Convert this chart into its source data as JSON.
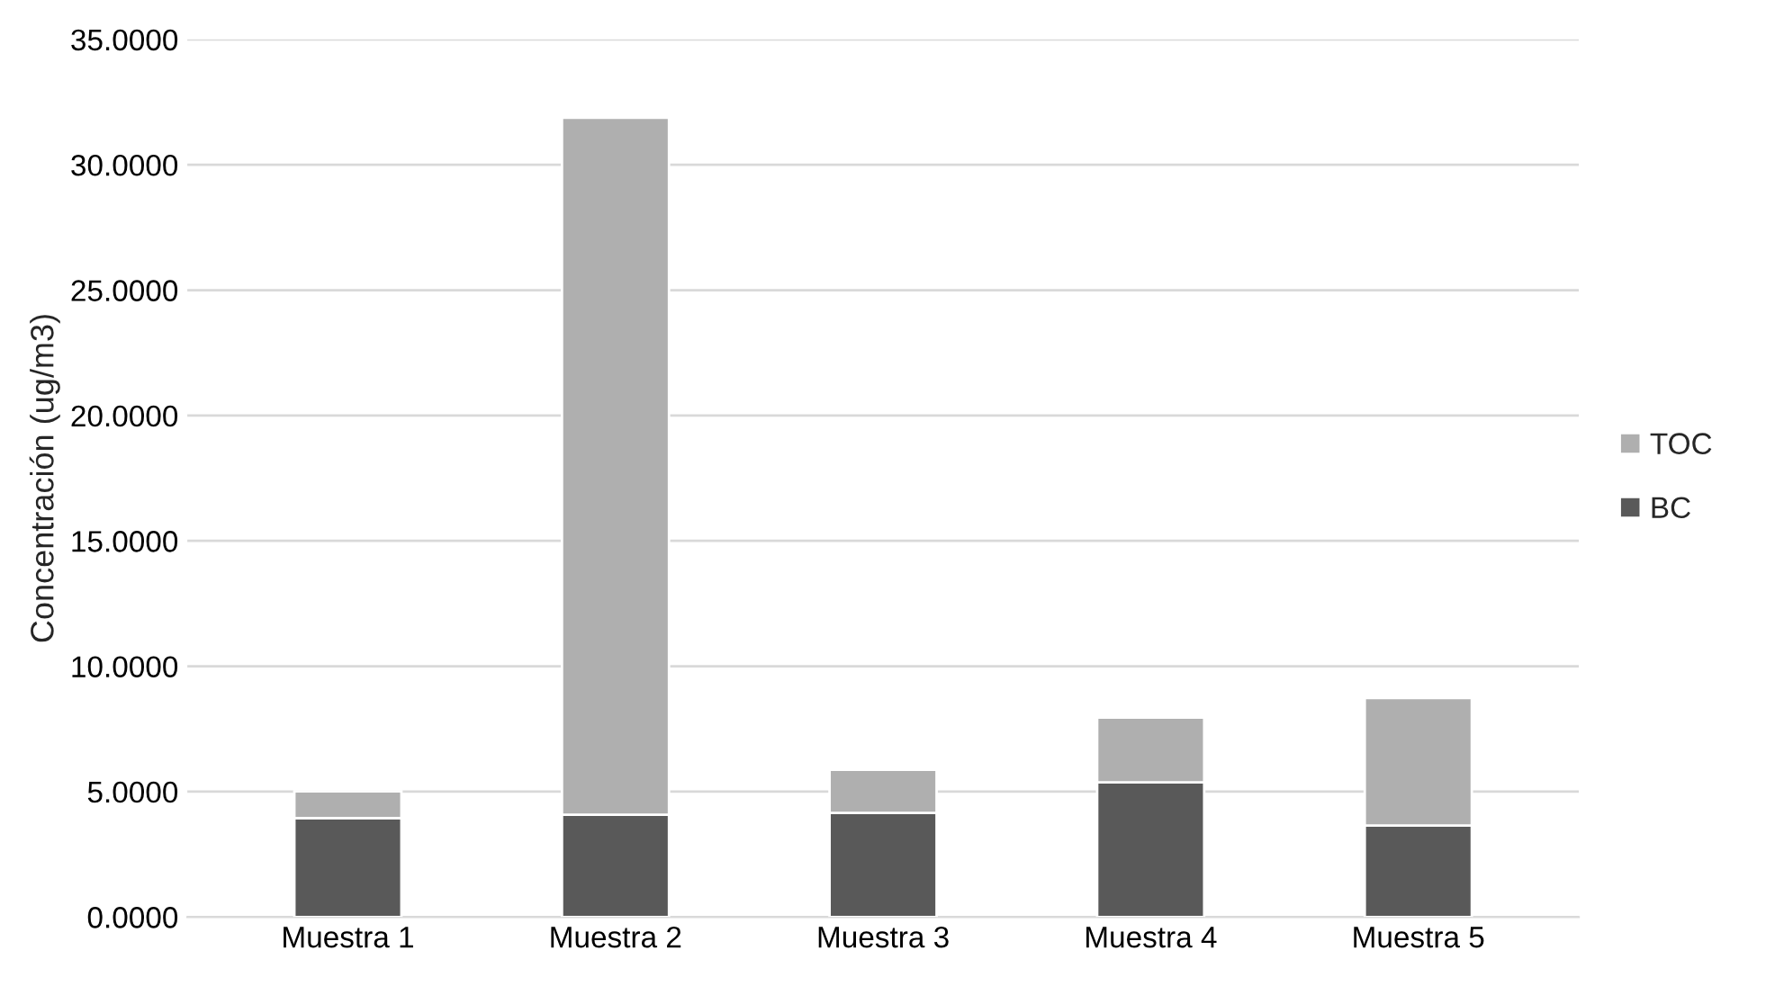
{
  "chart_data": {
    "type": "bar",
    "stacked": true,
    "ylabel": "Concentración (ug/m3)",
    "categories": [
      "Muestra 1",
      "Muestra 2",
      "Muestra 3",
      "Muestra 4",
      "Muestra 5"
    ],
    "series": [
      {
        "name": "BC",
        "color": "#595959",
        "values": [
          3.94,
          4.08,
          4.15,
          5.37,
          3.65
        ]
      },
      {
        "name": "TOC",
        "color": "#afafaf",
        "values": [
          1.07,
          27.8,
          1.72,
          2.58,
          5.08
        ]
      }
    ],
    "ylim": [
      0,
      35
    ],
    "yticks": [
      {
        "value": 0,
        "label": "0.0000"
      },
      {
        "value": 5,
        "label": "5.0000"
      },
      {
        "value": 10,
        "label": "10.0000"
      },
      {
        "value": 15,
        "label": "15.0000"
      },
      {
        "value": 20,
        "label": "20.0000"
      },
      {
        "value": 25,
        "label": "25.0000"
      },
      {
        "value": 30,
        "label": "30.0000"
      },
      {
        "value": 35,
        "label": "35.0000"
      }
    ],
    "grid": "y",
    "legend": "right"
  }
}
